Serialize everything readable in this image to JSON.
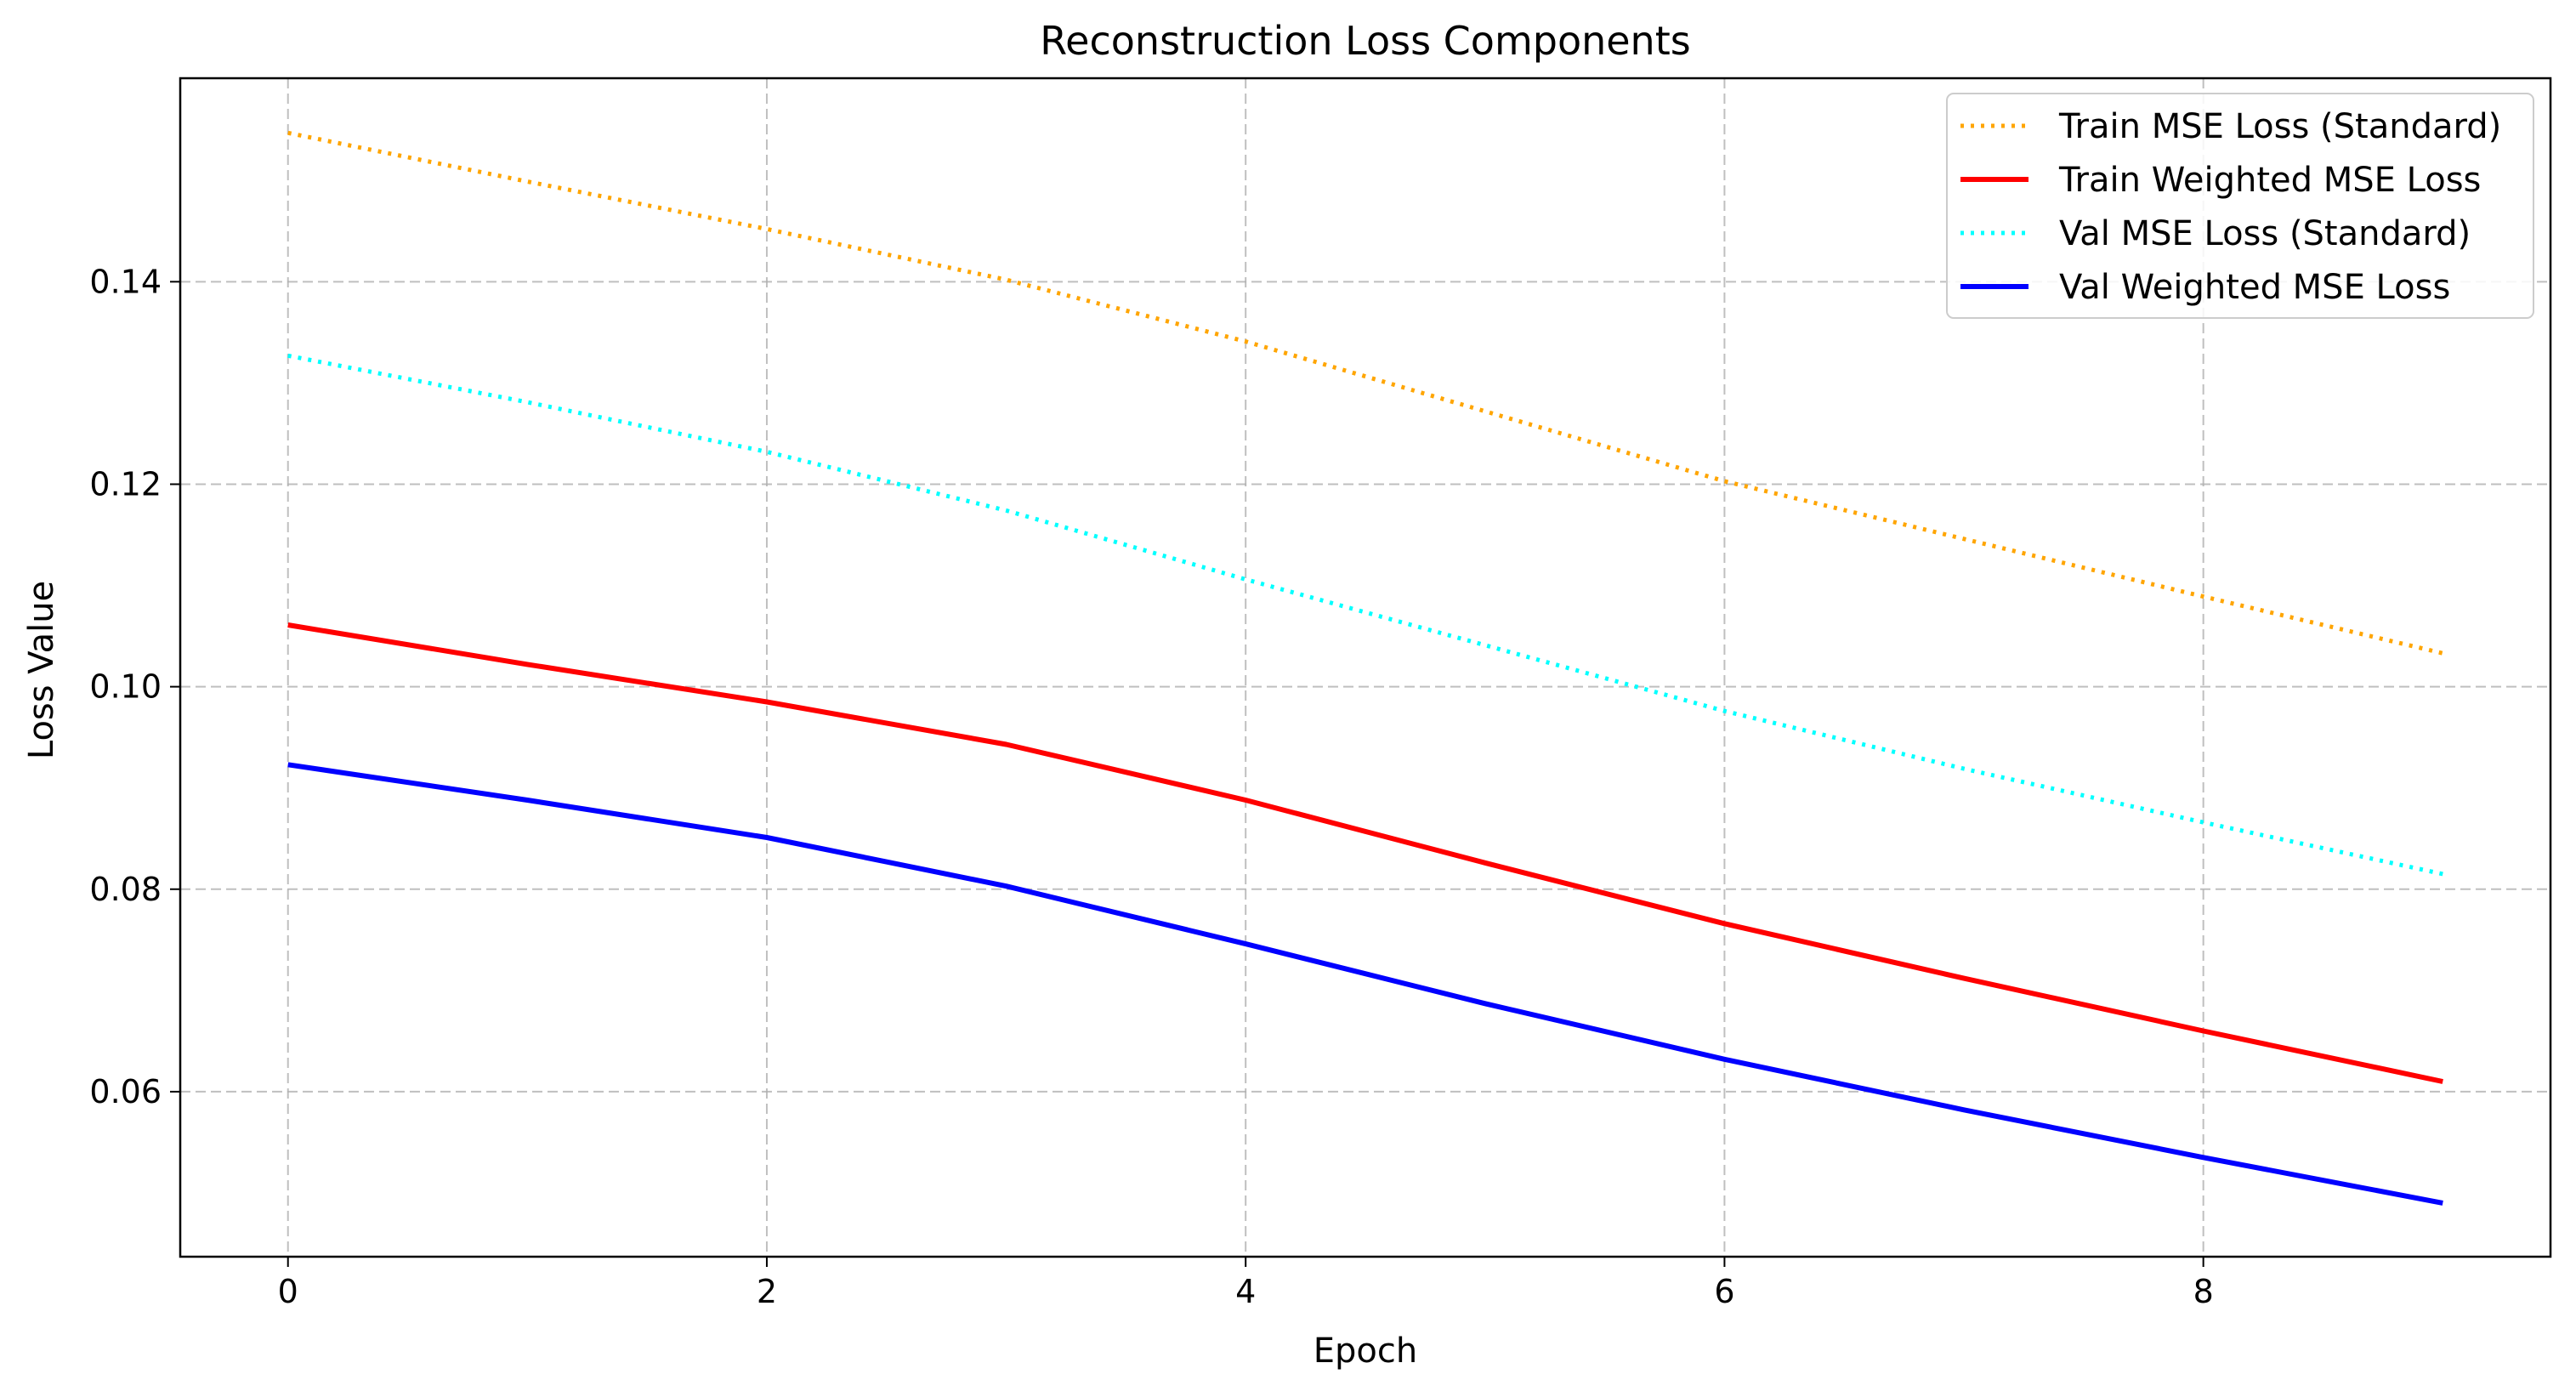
{
  "chart_data": {
    "type": "line",
    "title": "Reconstruction Loss Components",
    "xlabel": "Epoch",
    "ylabel": "Loss Value",
    "xlim": [
      -0.45,
      9.45
    ],
    "ylim": [
      0.0437,
      0.1601
    ],
    "xticks": [
      0,
      2,
      4,
      6,
      8
    ],
    "yticks": [
      0.06,
      0.08,
      0.1,
      0.12,
      0.14
    ],
    "xtick_labels": [
      "0",
      "2",
      "4",
      "6",
      "8"
    ],
    "ytick_labels": [
      "0.06",
      "0.08",
      "0.10",
      "0.12",
      "0.14"
    ],
    "grid": true,
    "legend_position": "top-right",
    "x": [
      0,
      1,
      2,
      3,
      4,
      5,
      6,
      7,
      8,
      9
    ],
    "series": [
      {
        "name": "Train MSE Loss (Standard)",
        "color": "#ffa500",
        "style": "dotted",
        "values": [
          0.1547,
          0.1499,
          0.1452,
          0.1402,
          0.1341,
          0.1272,
          0.1203,
          0.1146,
          0.1089,
          0.1033
        ]
      },
      {
        "name": "Train Weighted MSE Loss",
        "color": "#ff0000",
        "style": "solid",
        "values": [
          0.1061,
          0.1022,
          0.0985,
          0.0943,
          0.0888,
          0.0826,
          0.0766,
          0.0712,
          0.066,
          0.061
        ]
      },
      {
        "name": "Val MSE Loss (Standard)",
        "color": "#00ffff",
        "style": "dotted",
        "values": [
          0.1327,
          0.1281,
          0.1232,
          0.1174,
          0.1106,
          0.1041,
          0.0976,
          0.0919,
          0.0866,
          0.0815
        ]
      },
      {
        "name": "Val Weighted MSE Loss",
        "color": "#0000ff",
        "style": "solid",
        "values": [
          0.0923,
          0.0888,
          0.0851,
          0.0803,
          0.0746,
          0.0687,
          0.0632,
          0.0582,
          0.0535,
          0.049
        ]
      }
    ]
  }
}
